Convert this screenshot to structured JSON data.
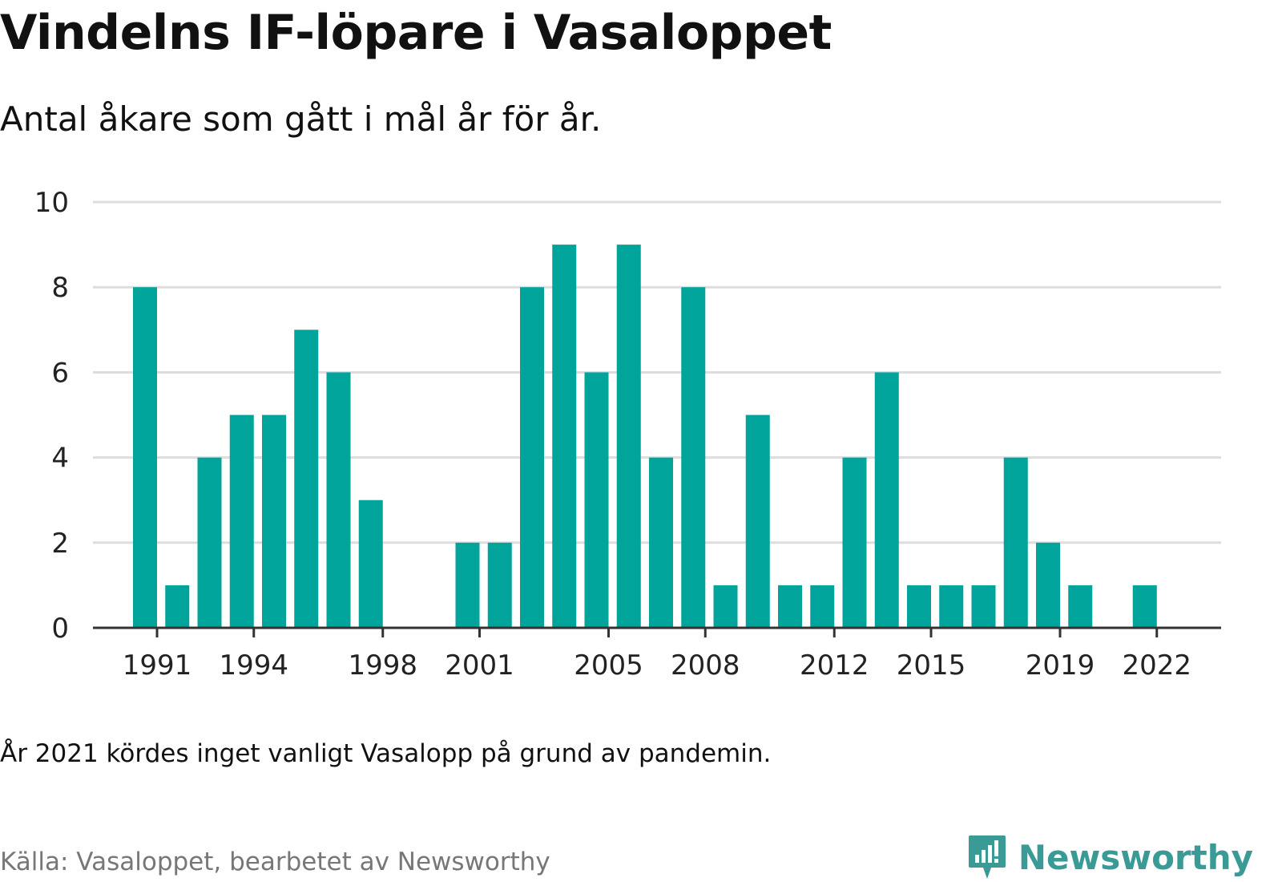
{
  "header": {
    "title": "Vindelns IF-löpare i Vasaloppet",
    "subtitle": "Antal åkare som gått i mål år för år."
  },
  "footer": {
    "note": "År 2021 kördes inget vanligt Vasalopp på grund av pandemin.",
    "source": "Källa: Vasaloppet, bearbetet av Newsworthy",
    "brand": "Newsworthy"
  },
  "colors": {
    "bar": "#00a49a",
    "grid": "#dddddd",
    "axis": "#333333",
    "brand": "#3a9a96"
  },
  "chart_data": {
    "type": "bar",
    "title": "Vindelns IF-löpare i Vasaloppet",
    "subtitle": "Antal åkare som gått i mål år för år.",
    "xlabel": "",
    "ylabel": "",
    "ylim": [
      0,
      10
    ],
    "yticks": [
      0,
      2,
      4,
      6,
      8,
      10
    ],
    "xticks": [
      "1991",
      "1994",
      "1998",
      "2001",
      "2005",
      "2008",
      "2012",
      "2015",
      "2019",
      "2022"
    ],
    "grid": true,
    "legend": "none",
    "categories": [
      "1991",
      "1992",
      "1993",
      "1994",
      "1995",
      "1996",
      "1997",
      "1998",
      "1999",
      "2000",
      "2001",
      "2002",
      "2003",
      "2004",
      "2005",
      "2006",
      "2007",
      "2008",
      "2009",
      "2010",
      "2011",
      "2012",
      "2013",
      "2014",
      "2015",
      "2016",
      "2017",
      "2018",
      "2019",
      "2020",
      "2021",
      "2022"
    ],
    "values": [
      8,
      1,
      4,
      5,
      5,
      7,
      6,
      3,
      0,
      0,
      2,
      2,
      8,
      9,
      6,
      9,
      4,
      8,
      1,
      5,
      1,
      1,
      4,
      6,
      1,
      1,
      1,
      4,
      2,
      1,
      0,
      1
    ]
  }
}
